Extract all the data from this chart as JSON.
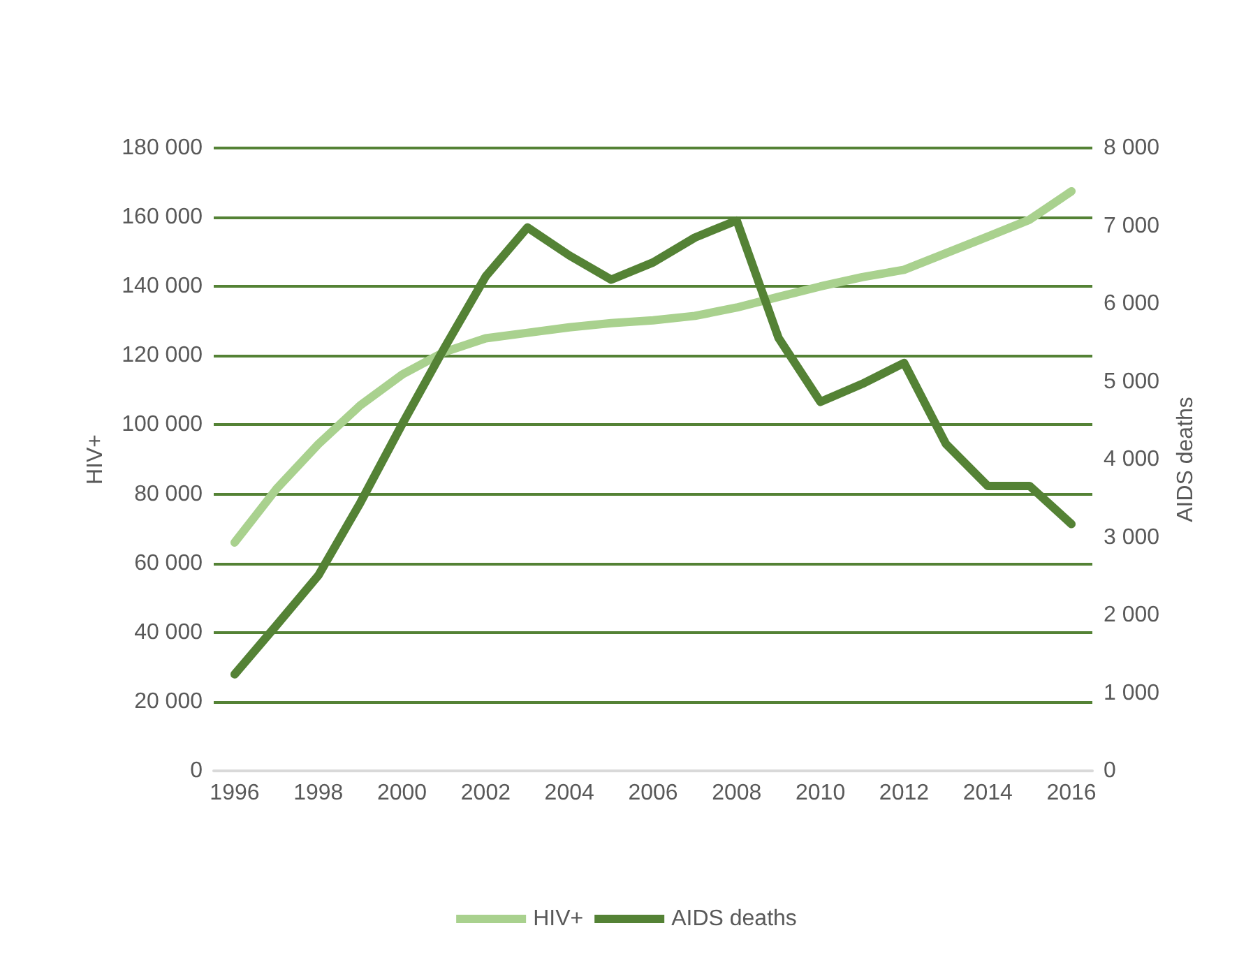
{
  "chart_data": {
    "type": "line",
    "ylabel": "HIV+",
    "y2label": "AIDS deaths",
    "categories": [
      "1996",
      null,
      "1998",
      null,
      "2000",
      null,
      "2002",
      null,
      "2004",
      null,
      "2006",
      null,
      "2008",
      null,
      "2010",
      null,
      "2012",
      null,
      "2014",
      null,
      "2016"
    ],
    "series": [
      {
        "name": "HIV+",
        "color": "#a9d18e",
        "values": [
          66000,
          81500,
          94400,
          105600,
          114500,
          121000,
          125000,
          126600,
          128200,
          129400,
          130200,
          131500,
          133900,
          137000,
          140000,
          142700,
          144800,
          149600,
          154400,
          159300,
          167500
        ]
      },
      {
        "name": "AIDS deaths",
        "color": "#548235",
        "axis": "y2",
        "values": [
          1240,
          1870,
          2510,
          3440,
          4450,
          5420,
          6350,
          6980,
          6620,
          6310,
          6530,
          6850,
          7070,
          5560,
          4740,
          4970,
          5240,
          4200,
          3660,
          3660,
          3170
        ]
      }
    ],
    "ylim": [
      0,
      180000
    ],
    "yticks": [
      0,
      {
        "value": 20000,
        "label": "20 000"
      },
      {
        "value": 40000,
        "label": "40 000"
      },
      {
        "value": 60000,
        "label": "60 000"
      },
      {
        "value": 80000,
        "label": "80 000"
      },
      {
        "value": 100000,
        "label": "100 000"
      },
      {
        "value": 120000,
        "label": "120 000"
      },
      {
        "value": 140000,
        "label": "140 000"
      },
      {
        "value": 160000,
        "label": "160 000"
      },
      {
        "value": 180000,
        "label": "180 000"
      }
    ],
    "y2lim": [
      0,
      8000
    ],
    "y2ticks": [
      0,
      {
        "value": 1000,
        "label": "1 000"
      },
      {
        "value": 2000,
        "label": "2 000"
      },
      {
        "value": 3000,
        "label": "3 000"
      },
      {
        "value": 4000,
        "label": "4 000"
      },
      {
        "value": 5000,
        "label": "5 000"
      },
      {
        "value": 6000,
        "label": "6 000"
      },
      {
        "value": 7000,
        "label": "7 000"
      },
      {
        "value": 8000,
        "label": "8 000"
      }
    ],
    "grid": "y",
    "legend": "bottom",
    "marker": "none",
    "line_style": "solid"
  }
}
